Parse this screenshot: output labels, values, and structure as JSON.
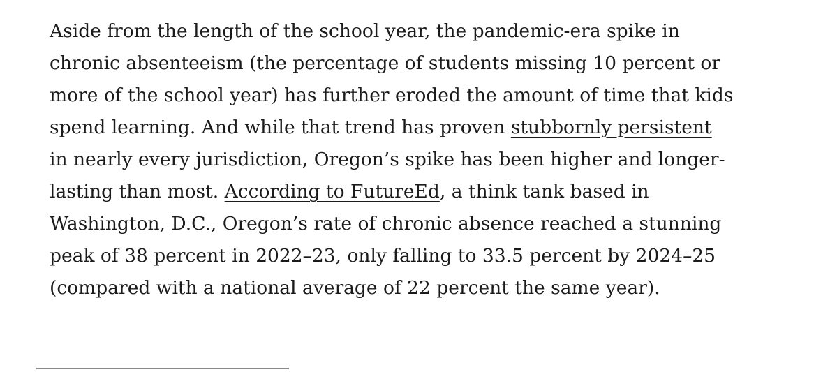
{
  "paragraph": {
    "lines": [
      "Aside from the length of the school year, the pandemic-era spike in",
      "chronic absenteeism (the percentage of students missing 10 percent or",
      "more of the school year) has further eroded the amount of time that kids",
      {
        "before": "spend learning. And while that trend has proven ",
        "link": "stubbornly persistent",
        "after": ""
      },
      "in nearly every jurisdiction, Oregon’s spike has been higher and longer-",
      {
        "before": "lasting than most. ",
        "link": "According to FutureEd",
        "after": ", a think tank based in"
      },
      "Washington, D.C., Oregon’s rate of chronic absence reached a stunning",
      "peak of 38 percent in 2022–23, only falling to 33.5 percent by 2024–25",
      "(compared with a national average of 22 percent the same year)."
    ]
  },
  "colors": {
    "text": "#1b1b1b",
    "rule": "#8a8a8a",
    "background": "#ffffff"
  }
}
